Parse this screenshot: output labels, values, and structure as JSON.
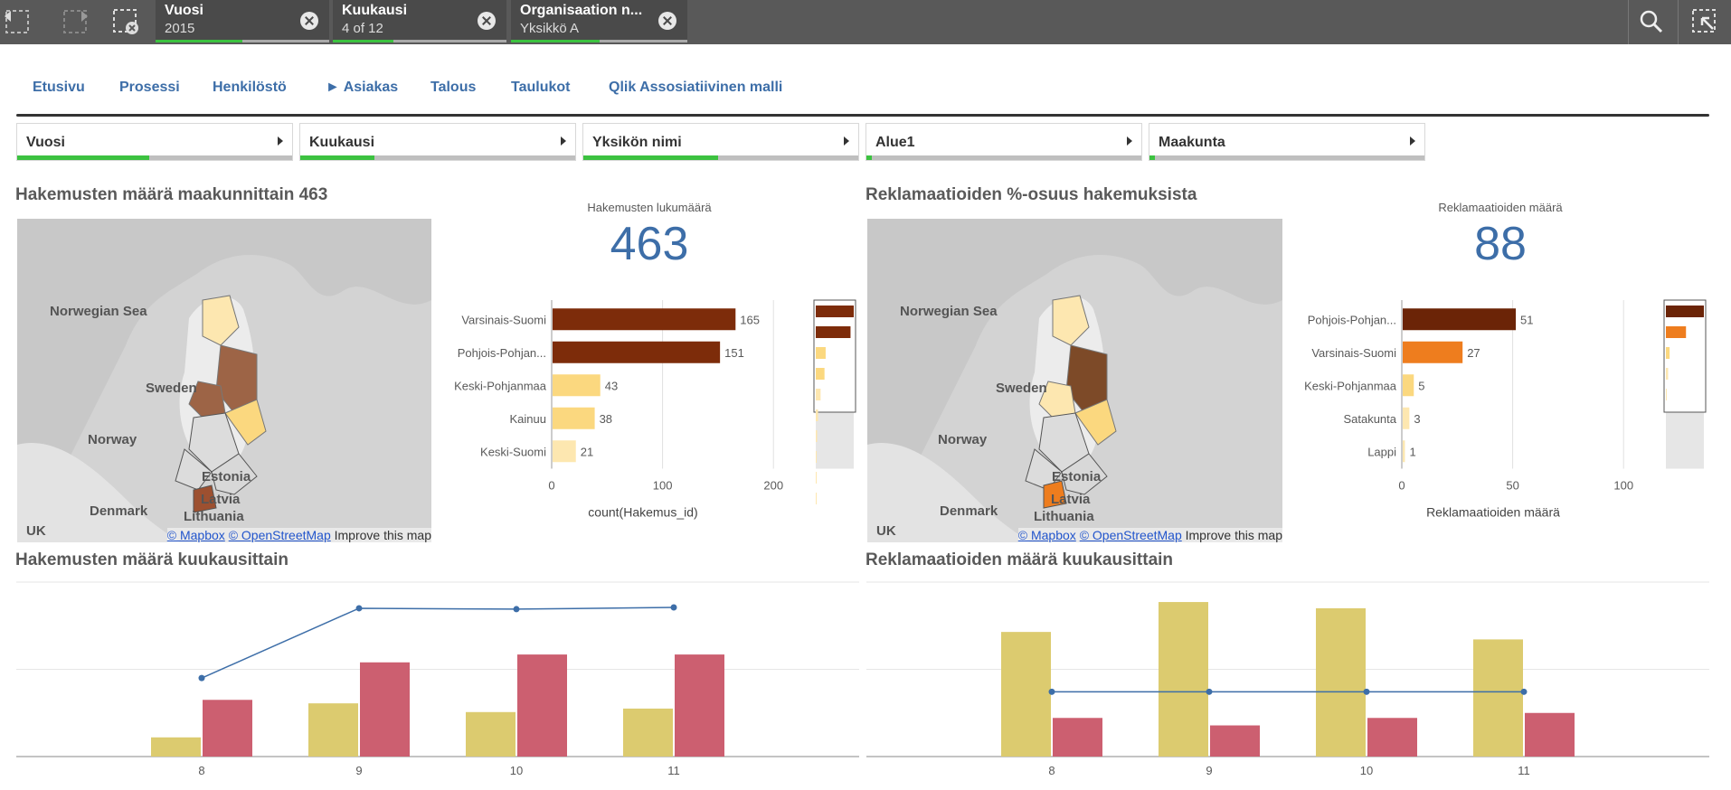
{
  "toolbar": {
    "icons": [
      "step-back-icon",
      "step-forward-icon",
      "clear-selections-icon",
      "search-icon",
      "selections-tool-icon"
    ]
  },
  "selections": [
    {
      "title": "Vuosi",
      "value": "2015",
      "fill": 0.5
    },
    {
      "title": "Kuukausi",
      "value": "4 of 12",
      "fill": 0.35
    },
    {
      "title": "Organisaation n...",
      "value": "Yksikkö A",
      "fill": 0.5
    }
  ],
  "tabs": [
    "Etusivu",
    "Prosessi",
    "Henkilöstö",
    "► Asiakas",
    "Talous",
    "Taulukot",
    "Qlik Assosiatiivinen malli"
  ],
  "filters": [
    {
      "label": "Vuosi",
      "fill": 0.48
    },
    {
      "label": "Kuukausi",
      "fill": 0.27
    },
    {
      "label": "Yksikön nimi",
      "fill": 0.49
    },
    {
      "label": "Alue1",
      "fill": 0.02
    },
    {
      "label": "Maakunta",
      "fill": 0.02
    }
  ],
  "left": {
    "title": "Hakemusten määrä maakunnittain 463",
    "kpi_label": "Hakemusten lukumäärä",
    "kpi_value": "463",
    "monthly_title": "Hakemusten määrä kuukausittain"
  },
  "right": {
    "title": "Reklamaatioiden %-osuus hakemuksista",
    "kpi_label": "Reklamaatioiden määrä",
    "kpi_value": "88",
    "monthly_title": "Reklamaatioiden määrä kuukausittain"
  },
  "map": {
    "labels": [
      "Norwegian Sea",
      "Sweden",
      "Norway",
      "Estonia",
      "Latvia",
      "Denmark",
      "Lithuania",
      "UK"
    ],
    "attribution_links": [
      "© Mapbox",
      "© OpenStreetMap"
    ],
    "attribution_text": "Improve this map"
  },
  "colors": {
    "dark": "#6b2407",
    "mid": "#7d2c0a",
    "orange": "#ee7d1e",
    "light": "#fbd87f",
    "pale": "#fde7b0",
    "pink": "#cc5f70",
    "olive": "#dccb6f",
    "line": "#3d6ea8"
  },
  "chart_data": [
    {
      "type": "bar",
      "orientation": "horizontal",
      "categories": [
        "Varsinais-Suomi",
        "Pohjois-Pohjan...",
        "Keski-Pohjanmaa",
        "Kainuu",
        "Keski-Suomi"
      ],
      "values": [
        165,
        151,
        43,
        38,
        21
      ],
      "xlabel": "count(Hakemus_id)",
      "xlim": [
        0,
        230
      ],
      "xticks": [
        0,
        100,
        200
      ],
      "mini_values": [
        165,
        151,
        43,
        38,
        21,
        10,
        6,
        4,
        3,
        2
      ]
    },
    {
      "type": "bar",
      "orientation": "horizontal",
      "categories": [
        "Pohjois-Pohjan...",
        "Varsinais-Suomi",
        "Keski-Pohjanmaa",
        "Satakunta",
        "Lappi"
      ],
      "values": [
        51,
        27,
        5,
        3,
        1
      ],
      "xlabel": "Reklamaatioiden määrä",
      "xlim": [
        0,
        115
      ],
      "xticks": [
        0,
        50,
        100
      ],
      "mini_values": [
        51,
        27,
        5,
        3,
        1
      ]
    },
    {
      "type": "bar",
      "categories": [
        "8",
        "9",
        "10",
        "11"
      ],
      "series": [
        {
          "values": [
            22,
            61,
            51,
            55
          ]
        },
        {
          "values": [
            65,
            108,
            117,
            117
          ]
        }
      ],
      "line": [
        90,
        170,
        169,
        171
      ],
      "ylim": [
        0,
        200
      ]
    },
    {
      "type": "bar",
      "categories": [
        "8",
        "9",
        "10",
        "11"
      ],
      "series": [
        {
          "values": [
            100,
            124,
            119,
            94
          ]
        },
        {
          "values": [
            31,
            25,
            31,
            35
          ]
        }
      ],
      "line": [
        52,
        52,
        52,
        52
      ],
      "ylim": [
        0,
        140
      ]
    }
  ]
}
